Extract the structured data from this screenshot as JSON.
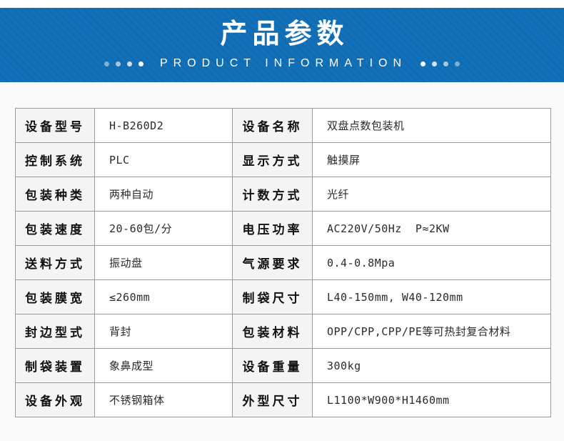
{
  "header": {
    "title": "产品参数",
    "subtitle": "PRODUCT INFORMATION",
    "banner_color": "#1270b8",
    "decor": "fading-dots"
  },
  "colors": {
    "banner_blue": "#1270b8",
    "table_border": "#9b9b9b",
    "label_cell_bg": "#f4f4f4",
    "value_cell_bg": "#fdfdfd",
    "page_bg": "#fafafa"
  },
  "table": {
    "rows": [
      {
        "l1": "设备型号",
        "v1": "H-B260D2",
        "l2": "设备名称",
        "v2": "双盘点数包装机"
      },
      {
        "l1": "控制系统",
        "v1": "PLC",
        "l2": "显示方式",
        "v2": "触摸屏"
      },
      {
        "l1": "包装种类",
        "v1": "两种自动",
        "l2": "计数方式",
        "v2": "光纤"
      },
      {
        "l1": "包装速度",
        "v1": "20-60包/分",
        "l2": "电压功率",
        "v2": "AC220V/50Hz  P≈2KW"
      },
      {
        "l1": "送料方式",
        "v1": "振动盘",
        "l2": "气源要求",
        "v2": "0.4-0.8Mpa"
      },
      {
        "l1": "包装膜宽",
        "v1": "≤260mm",
        "l2": "制袋尺寸",
        "v2": "L40-150mm, W40-120mm"
      },
      {
        "l1": "封边型式",
        "v1": "背封",
        "l2": "包装材料",
        "v2": "OPP/CPP,CPP/PE等可热封复合材料"
      },
      {
        "l1": "制袋装置",
        "v1": "象鼻成型",
        "l2": "设备重量",
        "v2": "300kg"
      },
      {
        "l1": "设备外观",
        "v1": "不锈钢箱体",
        "l2": "外型尺寸",
        "v2": "L1100*W900*H1460mm"
      }
    ]
  }
}
